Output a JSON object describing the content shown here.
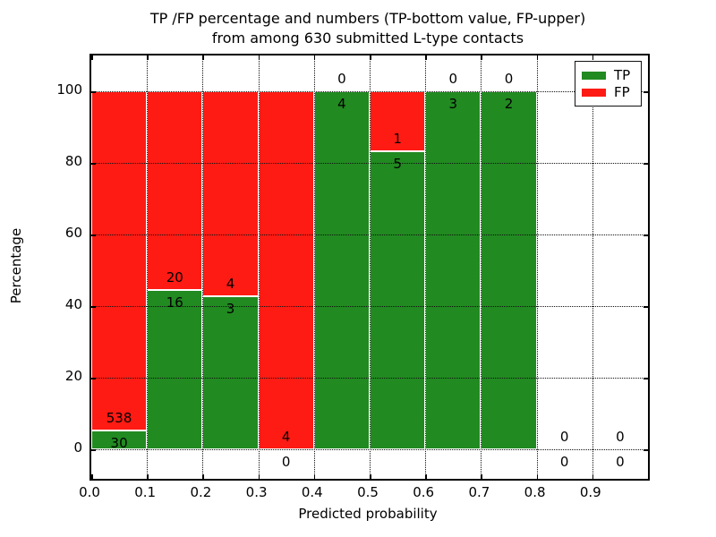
{
  "figure": {
    "title_lines": [
      "TP /FP percentage and numbers (TP-bottom value, FP-upper)",
      "from among 630 submitted L-type contacts"
    ]
  },
  "chart_data": {
    "type": "bar",
    "stacked": true,
    "normalized": "each bar scaled to 100%",
    "title": "TP /FP percentage and numbers (TP-bottom value, FP-upper)\nfrom among 630 submitted L-type contacts",
    "xlabel": "Predicted probability",
    "ylabel": "Percentage",
    "xlim": [
      0.0,
      1.0
    ],
    "ylim": [
      -8,
      110
    ],
    "grid": "dotted, drawn above bars",
    "x_tick_labels": [
      "0.0",
      "0.1",
      "0.2",
      "0.3",
      "0.4",
      "0.5",
      "0.6",
      "0.7",
      "0.8",
      "0.9"
    ],
    "y_tick_values": [
      0,
      20,
      40,
      60,
      80,
      100
    ],
    "bin_width": 0.1,
    "categories": [
      "0.0-0.1",
      "0.1-0.2",
      "0.2-0.3",
      "0.3-0.4",
      "0.4-0.5",
      "0.5-0.6",
      "0.6-0.7",
      "0.7-0.8",
      "0.8-0.9",
      "0.9-1.0"
    ],
    "series": [
      {
        "name": "TP",
        "color": "#218a21",
        "values": [
          30,
          16,
          3,
          0,
          4,
          5,
          3,
          2,
          0,
          0
        ]
      },
      {
        "name": "FP",
        "color": "#fe1b14",
        "values": [
          538,
          20,
          4,
          4,
          0,
          1,
          0,
          0,
          0,
          0
        ]
      }
    ],
    "tp_percent": [
      5.3,
      44.4,
      42.9,
      0.0,
      100.0,
      83.3,
      100.0,
      100.0,
      null,
      null
    ],
    "legend": {
      "position": "upper right",
      "entries": [
        {
          "label": "TP",
          "color": "#218a21"
        },
        {
          "label": "FP",
          "color": "#fe1b14"
        }
      ]
    }
  }
}
